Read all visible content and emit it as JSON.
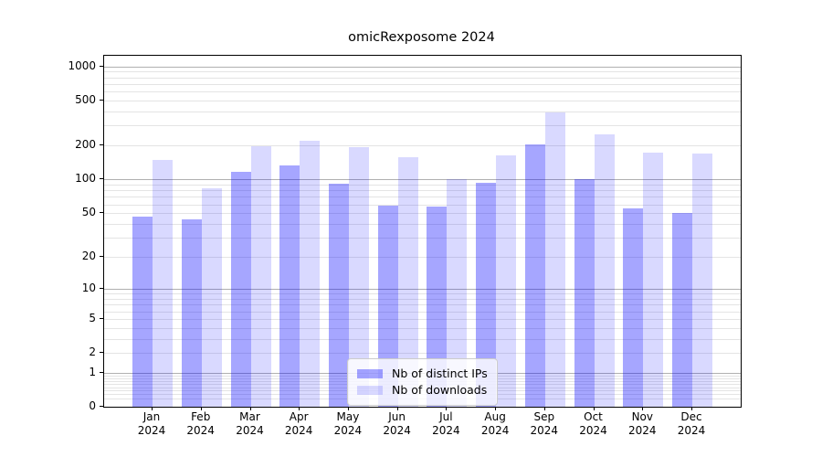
{
  "title": "omicRexposome 2024",
  "colors": {
    "distinct_ips": "rgba(0,0,255,0.35)",
    "downloads": "rgba(0,0,255,0.15)",
    "grid_major": "#b0b0b0",
    "grid_minor": "#e4e4e4",
    "axis": "#000000",
    "legend_border": "#cccccc"
  },
  "legend": {
    "items": [
      {
        "label": "Nb of distinct IPs"
      },
      {
        "label": "Nb of downloads"
      }
    ]
  },
  "chart_data": {
    "type": "bar",
    "title": "omicRexposome 2024",
    "categories": [
      "Jan",
      "Feb",
      "Mar",
      "Apr",
      "May",
      "Jun",
      "Jul",
      "Aug",
      "Sep",
      "Oct",
      "Nov",
      "Dec"
    ],
    "year": "2024",
    "series": [
      {
        "name": "Nb of distinct IPs",
        "color_key": "distinct_ips",
        "values": [
          47,
          44,
          117,
          134,
          91,
          58,
          57,
          94,
          206,
          100,
          55,
          50
        ]
      },
      {
        "name": "Nb of downloads",
        "color_key": "downloads",
        "values": [
          148,
          84,
          198,
          222,
          195,
          157,
          100,
          165,
          390,
          253,
          172,
          170
        ]
      }
    ],
    "xlabel": "",
    "ylabel": "",
    "yscale": "log1p",
    "ytick_values": [
      0,
      1,
      2,
      5,
      10,
      20,
      50,
      100,
      200,
      500,
      1000
    ],
    "ylim": [
      0,
      1240
    ],
    "grid": "horizontal-major-and-minor",
    "legend_position": "lower center"
  }
}
